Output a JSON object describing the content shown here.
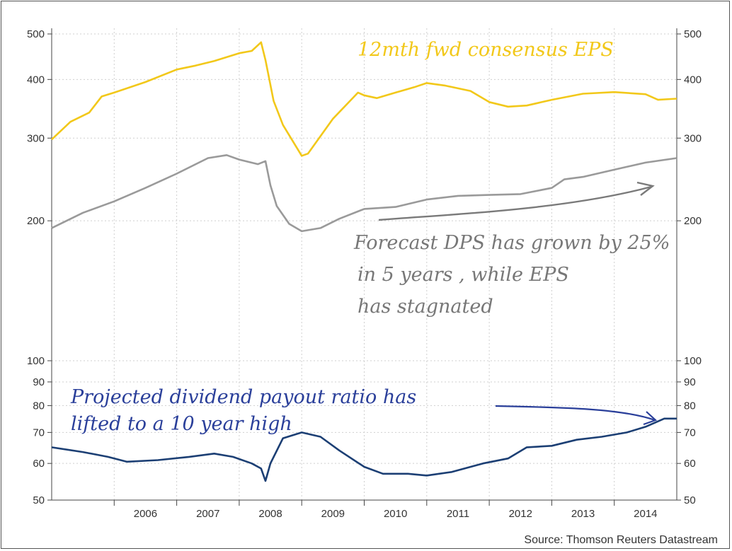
{
  "chart_data": {
    "type": "line",
    "title": "",
    "grid": true,
    "x_labels": [
      "2006",
      "2007",
      "2008",
      "2009",
      "2010",
      "2011",
      "2012",
      "2013",
      "2014"
    ],
    "upper_axis": {
      "scale": "log",
      "ylim": [
        170,
        500
      ],
      "ticks": [
        200,
        300,
        400,
        500
      ]
    },
    "lower_axis": {
      "scale": "log",
      "ylim": [
        50,
        100
      ],
      "ticks": [
        50,
        60,
        70,
        80,
        90,
        100
      ]
    },
    "series": [
      {
        "key": "eps",
        "axis": "upper",
        "color": "#f2c81a",
        "x": [
          2005.0,
          2005.3,
          2005.6,
          2005.8,
          2006.0,
          2006.5,
          2007.0,
          2007.3,
          2007.6,
          2008.0,
          2008.2,
          2008.35,
          2008.42,
          2008.55,
          2008.7,
          2009.0,
          2009.1,
          2009.5,
          2009.9,
          2010.0,
          2010.2,
          2010.5,
          2010.8,
          2011.0,
          2011.3,
          2011.7,
          2012.0,
          2012.3,
          2012.6,
          2013.0,
          2013.5,
          2014.0,
          2014.5,
          2014.7,
          2015.0
        ],
        "y": [
          298,
          325,
          340,
          368,
          375,
          395,
          420,
          428,
          438,
          455,
          460,
          480,
          440,
          360,
          320,
          275,
          278,
          330,
          375,
          370,
          365,
          375,
          385,
          393,
          388,
          378,
          358,
          350,
          352,
          362,
          373,
          376,
          372,
          362,
          364
        ]
      },
      {
        "key": "dps",
        "axis": "upper",
        "color": "#9a9a9a",
        "x": [
          2005.0,
          2005.5,
          2006.0,
          2006.5,
          2007.0,
          2007.5,
          2007.8,
          2008.0,
          2008.3,
          2008.42,
          2008.5,
          2008.6,
          2008.8,
          2009.0,
          2009.3,
          2009.6,
          2010.0,
          2010.5,
          2011.0,
          2011.5,
          2012.0,
          2012.5,
          2013.0,
          2013.2,
          2013.5,
          2014.0,
          2014.5,
          2015.0
        ],
        "y": [
          193,
          208,
          220,
          235,
          252,
          272,
          276,
          270,
          264,
          268,
          238,
          215,
          197,
          190,
          193,
          202,
          212,
          214,
          222,
          226,
          227,
          228,
          235,
          245,
          248,
          257,
          266,
          272
        ]
      },
      {
        "key": "payout",
        "axis": "lower",
        "color": "#1c3f74",
        "x": [
          2005.0,
          2005.5,
          2005.9,
          2006.2,
          2006.7,
          2007.2,
          2007.6,
          2007.9,
          2008.2,
          2008.35,
          2008.42,
          2008.5,
          2008.7,
          2009.0,
          2009.3,
          2009.6,
          2010.0,
          2010.3,
          2010.7,
          2011.0,
          2011.4,
          2011.9,
          2012.3,
          2012.6,
          2013.0,
          2013.4,
          2013.8,
          2014.2,
          2014.5,
          2014.8,
          2015.0
        ],
        "y": [
          65,
          63.5,
          62,
          60.5,
          61,
          62,
          63,
          62,
          60,
          58.5,
          55,
          60,
          68,
          70,
          68.5,
          64,
          59,
          57,
          57,
          56.5,
          57.5,
          60,
          61.5,
          65,
          65.5,
          67.5,
          68.5,
          70,
          72,
          75,
          75
        ]
      }
    ],
    "annotations": {
      "eps_note": "12mth fwd consensus EPS",
      "dps_note_1": "Forecast DPS has grown by 25%",
      "dps_note_2": "in 5 years , while EPS",
      "dps_note_3": "has stagnated",
      "payout_note_1": "Projected dividend payout ratio has",
      "payout_note_2": "lifted to a 10 year   high"
    },
    "source": "Source: Thomson Reuters Datastream"
  }
}
